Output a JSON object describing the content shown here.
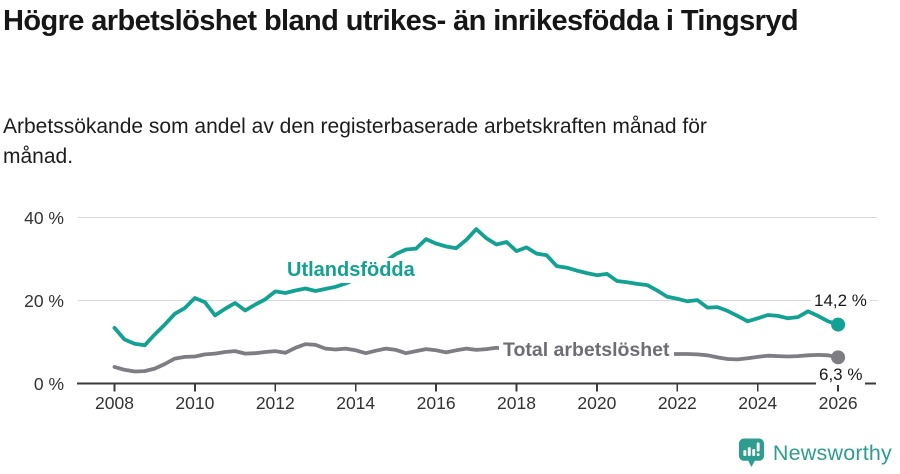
{
  "header": {
    "title": "Högre arbetslöshet bland utrikes- än inrikesfödda i Tingsryd",
    "subtitle": "Arbetssökande som andel av den registerbaserade arbetskraften månad för månad."
  },
  "colors": {
    "foreign_line": "#12a192",
    "total_line": "#7d7d83",
    "axis_line": "#3a3a3a",
    "gridline": "#d9d9d9",
    "axis_text": "#333333",
    "logo_teal": "#2f9c90"
  },
  "chart_data": {
    "type": "line",
    "title": "Högre arbetslöshet bland utrikes- än inrikesfödda i Tingsryd",
    "xlabel": "",
    "ylabel": "",
    "xlim": [
      2007.1,
      2027.0
    ],
    "ylim": [
      0,
      42
    ],
    "grid": "horizontal",
    "legend_position": "inline-labels",
    "x_start": 2008.0,
    "x_step": 0.25,
    "x_ticks": [
      2008,
      2010,
      2012,
      2014,
      2016,
      2018,
      2020,
      2022,
      2024,
      2026
    ],
    "x_tick_labels": [
      "2008",
      "2010",
      "2012",
      "2014",
      "2016",
      "2018",
      "2020",
      "2022",
      "2024",
      "2026"
    ],
    "y_ticks": [
      0,
      20,
      40
    ],
    "y_tick_labels": [
      "0 %",
      "20 %",
      "40 %"
    ],
    "series": [
      {
        "name": "Utlandsfödda",
        "color": "#12a192",
        "end_label": "14,2 %",
        "end_value": 14.2,
        "values": [
          13.4,
          10.6,
          9.6,
          9.2,
          11.8,
          14.2,
          16.8,
          18.2,
          20.6,
          19.6,
          16.4,
          18.0,
          19.4,
          17.6,
          19.0,
          20.3,
          22.2,
          21.8,
          22.4,
          22.9,
          22.3,
          22.8,
          23.3,
          24.1,
          25.1,
          26.4,
          27.9,
          29.5,
          31.2,
          32.3,
          32.5,
          34.8,
          33.7,
          33.0,
          32.6,
          34.6,
          37.2,
          35.0,
          33.5,
          34.1,
          31.9,
          32.8,
          31.3,
          30.9,
          28.3,
          27.9,
          27.2,
          26.6,
          26.1,
          26.4,
          24.7,
          24.4,
          24.0,
          23.7,
          22.4,
          20.9,
          20.4,
          19.8,
          20.1,
          18.3,
          18.4,
          17.5,
          16.3,
          15.0,
          15.7,
          16.5,
          16.3,
          15.7,
          16.0,
          17.4,
          16.3,
          15.0,
          14.2
        ]
      },
      {
        "name": "Total arbetslöshet",
        "color": "#7d7d83",
        "end_label": "6,3 %",
        "end_value": 6.3,
        "values": [
          4.0,
          3.3,
          2.9,
          3.0,
          3.6,
          4.7,
          6.0,
          6.4,
          6.5,
          7.0,
          7.2,
          7.6,
          7.8,
          7.2,
          7.3,
          7.6,
          7.8,
          7.4,
          8.6,
          9.5,
          9.3,
          8.4,
          8.2,
          8.4,
          8.0,
          7.3,
          7.9,
          8.4,
          8.1,
          7.3,
          7.8,
          8.3,
          8.0,
          7.5,
          8.0,
          8.4,
          8.1,
          8.3,
          8.6,
          8.3,
          8.1,
          7.9,
          7.8,
          7.7,
          7.6,
          7.4,
          7.3,
          7.3,
          7.4,
          7.8,
          7.7,
          7.5,
          7.4,
          7.3,
          7.2,
          7.1,
          7.1,
          7.1,
          7.0,
          6.8,
          6.3,
          5.9,
          5.8,
          6.1,
          6.4,
          6.7,
          6.6,
          6.5,
          6.6,
          6.8,
          6.9,
          6.8,
          6.3
        ]
      }
    ]
  },
  "footer": {
    "brand": "Newsworthy"
  }
}
